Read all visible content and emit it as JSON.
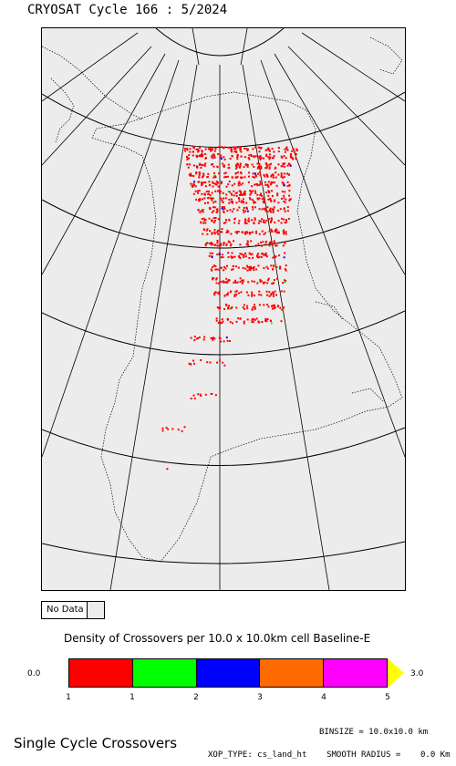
{
  "header": {
    "title": "CRYOSAT Cycle 166 : 5/2024"
  },
  "legend": {
    "nodata_label": "No Data",
    "density_title": "Density of Crossovers per  10.0 x  10.0km cell Baseline-E",
    "scale_min": "0.0",
    "scale_max": "3.0",
    "colors": [
      "#ff0000",
      "#00ff00",
      "#0000ff",
      "#ff6a00",
      "#ff00ff"
    ],
    "arrow_color": "#ffff00",
    "tick_labels": [
      "1",
      "1",
      "2",
      "3",
      "4",
      "5"
    ]
  },
  "footer": {
    "title": "Single Cycle Crossovers",
    "binsize": "BINSIZE = 10.0x10.0 km",
    "xop_type": "XOP_TYPE: cs_land_ht",
    "smooth_radius": "SMOOTH RADIUS =    0.0 Km"
  }
}
